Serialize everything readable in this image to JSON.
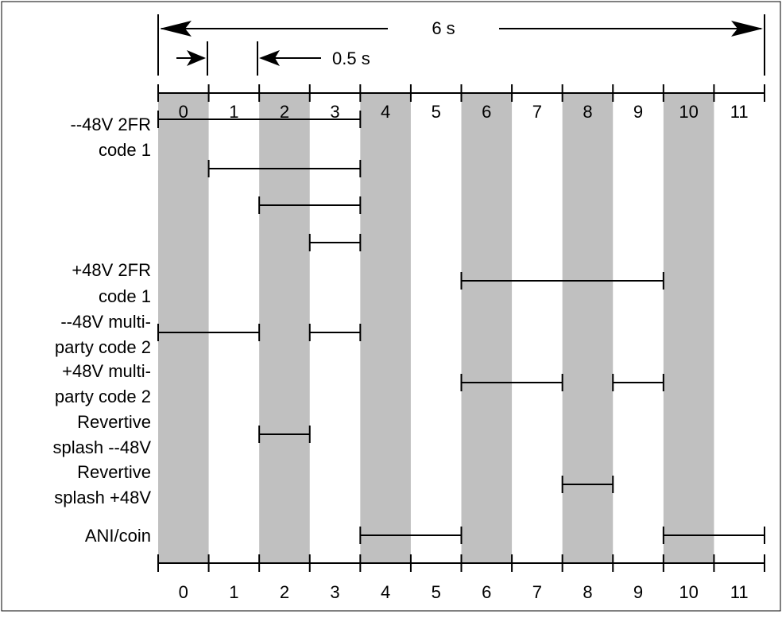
{
  "diagram": {
    "total_duration_label": "6 s",
    "interval_label": "0.5 s",
    "slots": [
      "0",
      "1",
      "2",
      "3",
      "4",
      "5",
      "6",
      "7",
      "8",
      "9",
      "10",
      "11"
    ],
    "shaded_slots": [
      0,
      2,
      4,
      6,
      8,
      10
    ],
    "shade_color": "#c0c0c0",
    "line_color": "#000000",
    "row_labels": [
      {
        "id": "neg48-2fr-code1",
        "lines": [
          "--48V 2FR",
          "code 1"
        ]
      },
      {
        "id": "pos48-2fr-code1",
        "lines": [
          "+48V 2FR",
          "code 1"
        ]
      },
      {
        "id": "neg48-multiparty-code2",
        "lines": [
          "--48V multi-",
          "party code 2"
        ]
      },
      {
        "id": "pos48-multiparty-code2",
        "lines": [
          "+48V multi-",
          "party code 2"
        ]
      },
      {
        "id": "revertive-splash-neg48",
        "lines": [
          "Revertive",
          "splash --48V"
        ]
      },
      {
        "id": "revertive-splash-pos48",
        "lines": [
          "Revertive",
          "splash +48V"
        ]
      },
      {
        "id": "ani-coin",
        "lines": [
          "ANI/coin"
        ]
      }
    ],
    "segments": [
      {
        "row": "neg48-2fr-code1",
        "start": 0,
        "end": 4
      },
      {
        "row": "neg48-2fr-code1",
        "start": 1,
        "end": 4
      },
      {
        "row": "neg48-2fr-code1",
        "start": 2,
        "end": 4
      },
      {
        "row": "neg48-2fr-code1",
        "start": 3,
        "end": 4
      },
      {
        "row": "pos48-2fr-code1",
        "start": 6,
        "end": 10
      },
      {
        "row": "neg48-multiparty-code2",
        "start": 0,
        "end": 2
      },
      {
        "row": "neg48-multiparty-code2",
        "start": 3,
        "end": 4
      },
      {
        "row": "pos48-multiparty-code2",
        "start": 6,
        "end": 8
      },
      {
        "row": "pos48-multiparty-code2",
        "start": 9,
        "end": 10
      },
      {
        "row": "revertive-splash-neg48",
        "start": 2,
        "end": 3
      },
      {
        "row": "revertive-splash-pos48",
        "start": 8,
        "end": 9
      },
      {
        "row": "ani-coin",
        "start": 4,
        "end": 6
      },
      {
        "row": "ani-coin",
        "start": 10,
        "end": 12
      }
    ]
  }
}
